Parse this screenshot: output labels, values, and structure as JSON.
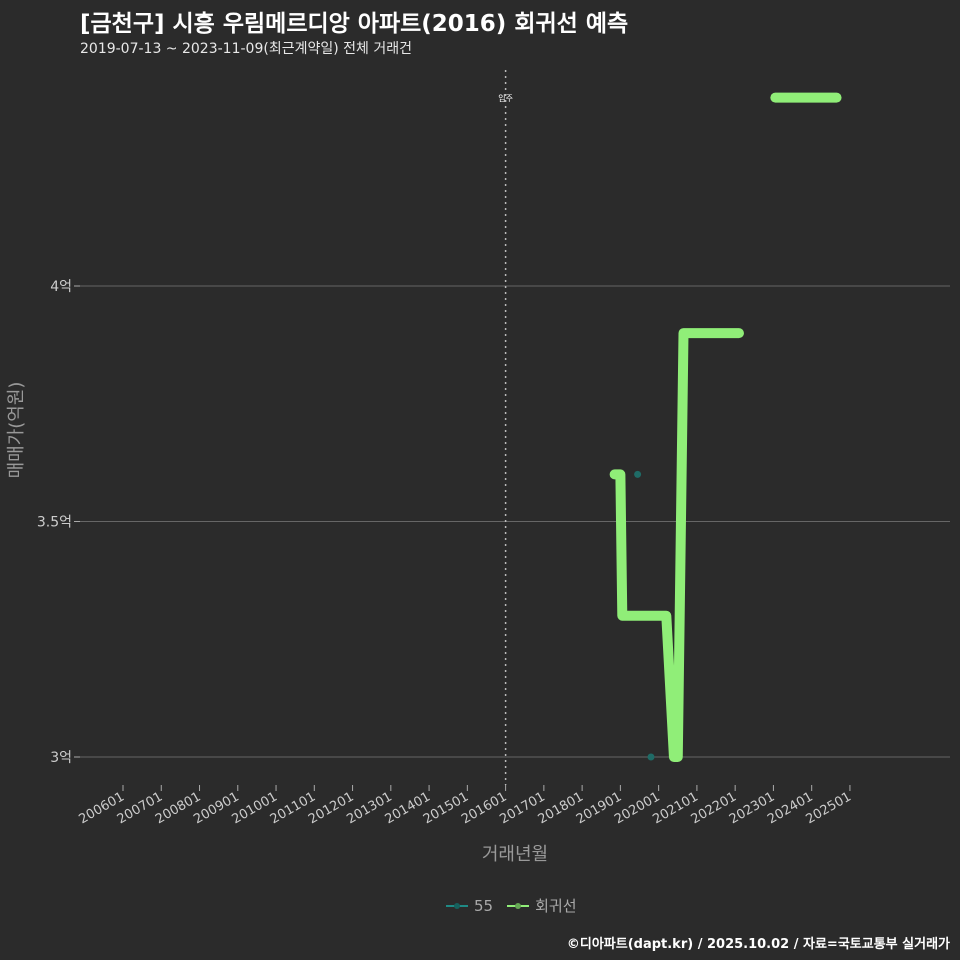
{
  "title": "[금천구] 시흥 우림메르디앙 아파트(2016) 회귀선 예측",
  "subtitle": "2019-07-13 ~ 2023-11-09(최근계약일) 전체 거래건",
  "footer": "©디아파트(dapt.kr) / 2025.10.02 / 자료=국토교통부 실거래가",
  "colors": {
    "regression": "#90ee78",
    "points": "#1f6b66",
    "grid": "#666666"
  },
  "chart_data": {
    "type": "line",
    "xlabel": "거래년월",
    "ylabel": "매매가(억원)",
    "xlim": [
      2005.4,
      2028.4
    ],
    "ylim": [
      2.93,
      4.46
    ],
    "x_ticks": [
      2006,
      2007,
      2008,
      2009,
      2010,
      2011,
      2012,
      2013,
      2014,
      2015,
      2016,
      2017,
      2018,
      2019,
      2020,
      2021,
      2022,
      2023,
      2024,
      2025
    ],
    "x_tick_labels": [
      "200601",
      "200701",
      "200801",
      "200901",
      "201001",
      "201101",
      "201201",
      "201301",
      "201401",
      "201501",
      "201601",
      "201701",
      "201801",
      "201901",
      "202001",
      "202101",
      "202201",
      "202301",
      "202401",
      "202501"
    ],
    "y_ticks": [
      3,
      3.5,
      4
    ],
    "y_tick_labels": [
      "3억",
      "3.5억",
      "4억"
    ],
    "annotation": {
      "x": 2016.0,
      "label": "입주"
    },
    "legend": [
      "55",
      "회귀선"
    ],
    "legend_position": "bottom",
    "series": [
      {
        "name": "55",
        "type": "scatter",
        "points": [
          [
            2019.45,
            3.6
          ],
          [
            2019.8,
            3.0
          ]
        ]
      },
      {
        "name": "회귀선",
        "type": "line",
        "segments": [
          [
            [
              2018.85,
              3.6
            ],
            [
              2019.0,
              3.6
            ],
            [
              2019.05,
              3.3
            ],
            [
              2020.2,
              3.3
            ],
            [
              2020.4,
              3.0
            ],
            [
              2020.5,
              3.0
            ],
            [
              2020.65,
              3.9
            ],
            [
              2022.1,
              3.9
            ]
          ],
          [
            [
              2023.05,
              4.4
            ],
            [
              2024.65,
              4.4
            ]
          ]
        ]
      }
    ]
  }
}
